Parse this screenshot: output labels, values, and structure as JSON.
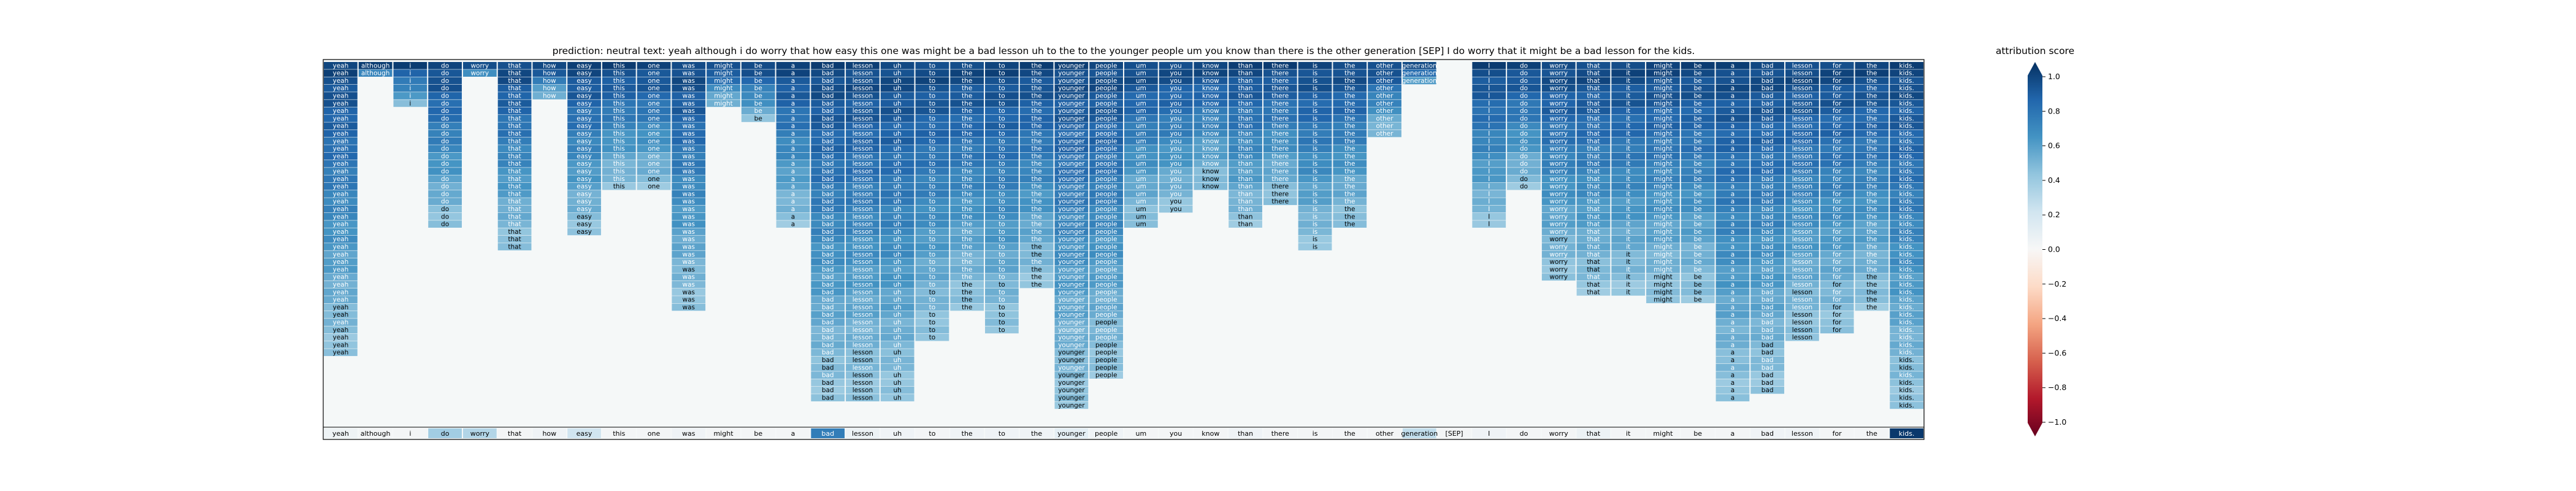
{
  "chart_data": {
    "type": "heatmap",
    "title": "prediction:  neutral     text:  yeah although i do worry that how easy this one was might be a bad lesson uh to the to the younger people um you know than there is the other generation [SEP] I do worry that it might be a bad lesson for the kids.",
    "tokens": [
      "yeah",
      "although",
      "i",
      "do",
      "worry",
      "that",
      "how",
      "easy",
      "this",
      "one",
      "was",
      "might",
      "be",
      "a",
      "bad",
      "lesson",
      "uh",
      "to",
      "the",
      "to",
      "the",
      "younger",
      "people",
      "um",
      "you",
      "know",
      "than",
      "there",
      "is",
      "the",
      "other",
      "generation",
      "[SEP]",
      "I",
      "do",
      "worry",
      "that",
      "it",
      "might",
      "be",
      "a",
      "bad",
      "lesson",
      "for",
      "the",
      "kids."
    ],
    "column_heights": [
      39,
      2,
      6,
      22,
      2,
      25,
      5,
      23,
      17,
      17,
      33,
      6,
      8,
      22,
      45,
      45,
      45,
      37,
      33,
      36,
      30,
      46,
      42,
      22,
      20,
      17,
      22,
      19,
      25,
      22,
      10,
      3,
      0,
      22,
      17,
      29,
      31,
      31,
      32,
      32,
      45,
      44,
      37,
      36,
      33,
      46
    ],
    "attribution_row": [
      0.05,
      0.02,
      0.02,
      0.35,
      0.3,
      0.02,
      0.04,
      0.2,
      0.02,
      0.02,
      0.04,
      0.02,
      0.02,
      0.02,
      0.7,
      0.06,
      0.04,
      0.02,
      0.04,
      0.04,
      0.04,
      0.1,
      0.04,
      0.02,
      0.02,
      0.02,
      0.04,
      0.02,
      0.02,
      0.02,
      0.02,
      0.25,
      0.02,
      0.04,
      0.02,
      0.02,
      0.06,
      0.02,
      0.02,
      0.02,
      0.02,
      0.04,
      0.04,
      0.02,
      0.02,
      0.97
    ],
    "colorbar": {
      "label": "attribution score",
      "ticks": [
        "1.0",
        "0.8",
        "0.6",
        "0.4",
        "0.2",
        "0.0",
        "−0.2",
        "−0.4",
        "−0.6",
        "−0.8",
        "−1.0"
      ],
      "range": [
        -1,
        1
      ],
      "colors": [
        "#67001f",
        "#b2182b",
        "#d6604d",
        "#f4a582",
        "#fddbc7",
        "#f7f7f7",
        "#d1e5f0",
        "#92c5de",
        "#4393c3",
        "#2166ac",
        "#053061"
      ]
    }
  }
}
